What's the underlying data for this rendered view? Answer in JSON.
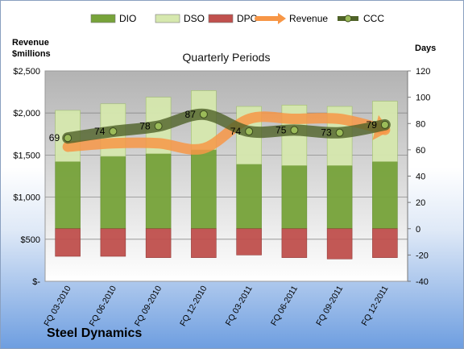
{
  "chart_data": {
    "type": "bar",
    "title": "Quarterly Periods",
    "company": "Steel Dynamics",
    "categories": [
      "FQ 03-2010",
      "FQ 06-2010",
      "FQ 09-2010",
      "FQ 12-2010",
      "FQ 03-2011",
      "FQ 06-2011",
      "FQ 09-2011",
      "FQ 12-2011"
    ],
    "y_left": {
      "label": "Revenue $millions",
      "label_lines": [
        "Revenue",
        "$millions"
      ],
      "range": [
        0,
        2500
      ],
      "ticks": [
        "$-",
        "$500",
        "$1,000",
        "$1,500",
        "$2,000",
        "$2,500"
      ]
    },
    "y_right": {
      "label": "Days",
      "range": [
        -40,
        120
      ],
      "ticks": [
        "-40",
        "-20",
        "0",
        "20",
        "40",
        "60",
        "80",
        "100",
        "120"
      ]
    },
    "legend": {
      "position": "top",
      "entries": [
        {
          "name": "DIO",
          "color": "#77a33a"
        },
        {
          "name": "DSO",
          "color": "#d6e8ae"
        },
        {
          "name": "DPO",
          "color": "#c0504d"
        },
        {
          "name": "Revenue",
          "color": "#f79646"
        },
        {
          "name": "CCC",
          "color": "#4f6228"
        }
      ]
    },
    "series": [
      {
        "name": "DIO",
        "axis": "right",
        "type": "stacked-bar",
        "values": [
          51,
          55,
          57,
          60,
          49,
          48,
          48,
          51
        ],
        "color": "#77a33a"
      },
      {
        "name": "DSO",
        "axis": "right",
        "type": "stacked-bar",
        "values": [
          39,
          40,
          43,
          45,
          44,
          46,
          45,
          46
        ],
        "color": "#d6e8ae"
      },
      {
        "name": "DPO",
        "axis": "right",
        "type": "bar-negative",
        "values": [
          -21,
          -21,
          -22,
          -22,
          -20,
          -22,
          -23,
          -22
        ],
        "color": "#c0504d"
      },
      {
        "name": "Revenue",
        "axis": "left",
        "type": "line",
        "values": [
          1600,
          1640,
          1640,
          1580,
          1930,
          1930,
          1930,
          1800
        ],
        "color": "#f79646"
      },
      {
        "name": "CCC",
        "axis": "right",
        "type": "line",
        "values": [
          69,
          74,
          78,
          87,
          74,
          75,
          73,
          79
        ],
        "color": "#4f6228"
      }
    ],
    "data_labels": [
      "69",
      "74",
      "78",
      "87",
      "74",
      "75",
      "73",
      "79"
    ],
    "grid": true
  }
}
